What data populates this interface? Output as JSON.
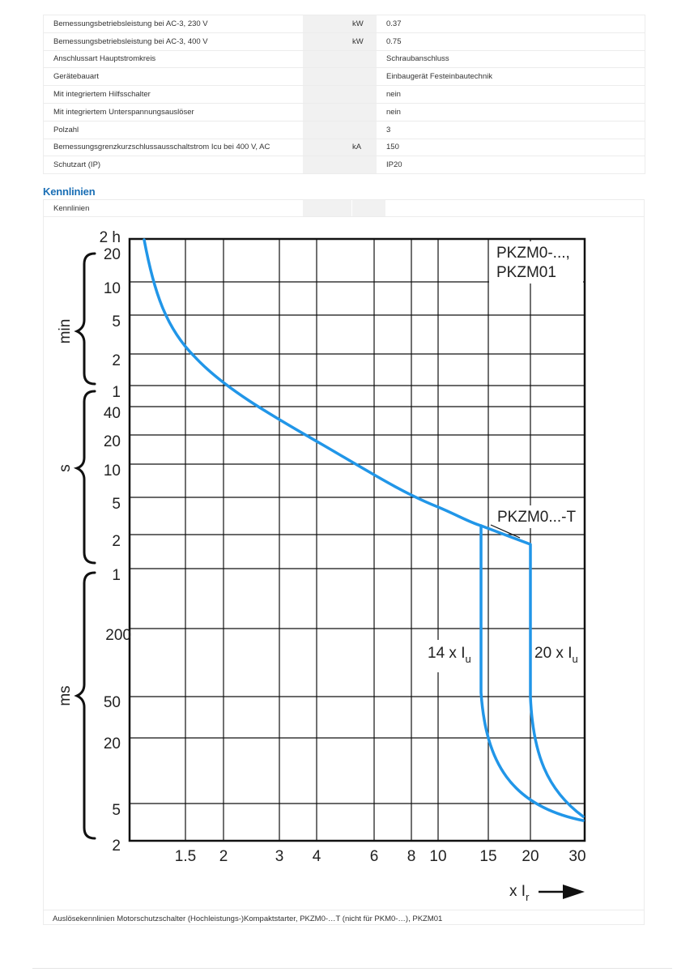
{
  "specs": [
    {
      "label": "Bemessungsbetriebsleistung bei AC-3, 230 V",
      "unit": "kW",
      "value": "0.37"
    },
    {
      "label": "Bemessungsbetriebsleistung bei AC-3, 400 V",
      "unit": "kW",
      "value": "0.75"
    },
    {
      "label": "Anschlussart Hauptstromkreis",
      "unit": "",
      "value": "Schraubanschluss"
    },
    {
      "label": "Gerätebauart",
      "unit": "",
      "value": "Einbaugerät Festeinbautechnik"
    },
    {
      "label": "Mit integriertem Hilfsschalter",
      "unit": "",
      "value": "nein"
    },
    {
      "label": "Mit integriertem Unterspannungsauslöser",
      "unit": "",
      "value": "nein"
    },
    {
      "label": "Polzahl",
      "unit": "",
      "value": "3"
    },
    {
      "label": "Bemessungsgrenzkurzschlussausschaltstrom Icu bei 400 V, AC",
      "unit": "kA",
      "value": "150"
    },
    {
      "label": "Schutzart (IP)",
      "unit": "",
      "value": "IP20"
    }
  ],
  "section": {
    "title": "Kennlinien",
    "row_label": "Kennlinien",
    "caption": "Auslösekennlinien Motorschutzschalter (Hochleistungs-)Kompaktstarter, PKZM0-…T (nicht für PKM0-…), PKZM01"
  },
  "chart_data": {
    "type": "line",
    "x_scale": "log",
    "x_ticks": [
      "1.5",
      "2",
      "3",
      "4",
      "6",
      "8",
      "10",
      "15",
      "20",
      "30"
    ],
    "y_ticks": [
      "2 h",
      "20",
      "10",
      "5",
      "2",
      "1",
      "40",
      "20",
      "10",
      "5",
      "2",
      "1",
      "200",
      "50",
      "20",
      "5",
      "2"
    ],
    "y_groups": [
      "min",
      "s",
      "ms"
    ],
    "xlabel_main": "x I",
    "xlabel_sub": "r",
    "labels": {
      "top_line1": "PKZM0-...,",
      "top_line2": "PKZM01",
      "t_label": "PKZM0...-T",
      "i14_main": "14 x I",
      "i14_sub": "u",
      "i20_main": "20 x I",
      "i20_sub": "u"
    },
    "line_color": "#2196e8",
    "grid": true
  }
}
